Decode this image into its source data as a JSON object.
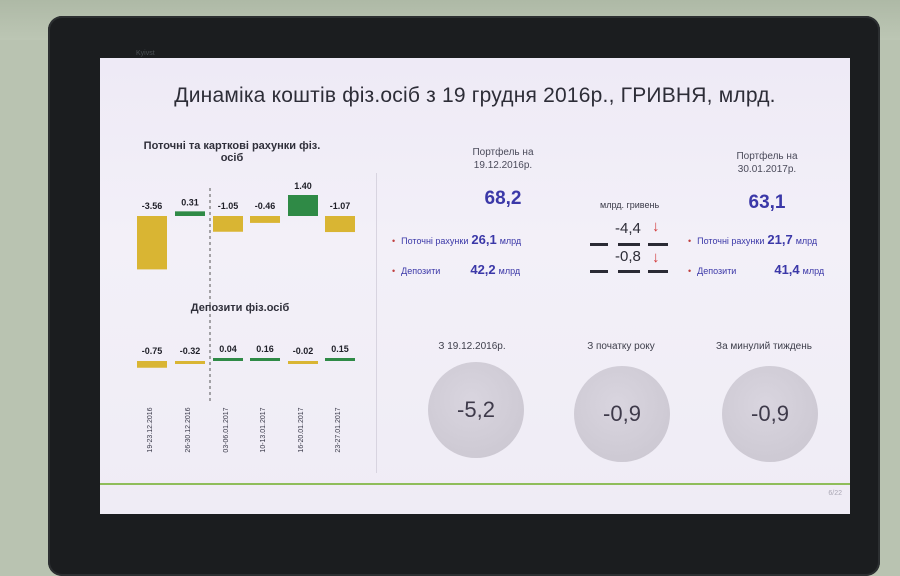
{
  "bezel": {
    "label": "Kyivst"
  },
  "slide": {
    "title": "Динаміка коштів фіз.осіб з 19 грудня 2016р., ГРИВНЯ, млрд.",
    "page": "6/22"
  },
  "left_charts": {
    "current_title": "Поточні та карткові рахунки фіз. осіб",
    "deposits_title": "Депозити фіз.осіб",
    "week_labels": [
      "19-23.12.2016",
      "26-30.12.2016",
      "03-06.01.2017",
      "10-13.01.2017",
      "16-20.01.2017",
      "23-27.01.2017"
    ]
  },
  "chart_data": [
    {
      "type": "bar",
      "title": "Поточні та карткові рахунки фіз. осіб",
      "categories": [
        "19-23.12.2016",
        "26-30.12.2016",
        "03-06.01.2017",
        "10-13.01.2017",
        "16-20.01.2017",
        "23-27.01.2017"
      ],
      "values": [
        -3.56,
        0.31,
        -1.05,
        -0.46,
        1.4,
        -1.07
      ],
      "value_labels": [
        "-3.56",
        "0.31",
        "-1.05",
        "-0.46",
        "1.40",
        "-1.07"
      ],
      "colors": {
        "negative": "#d9b533",
        "positive": "#2f8a46"
      },
      "xlabel": "",
      "ylabel": ""
    },
    {
      "type": "bar",
      "title": "Депозити фіз.осіб",
      "categories": [
        "19-23.12.2016",
        "26-30.12.2016",
        "03-06.01.2017",
        "10-13.01.2017",
        "16-20.01.2017",
        "23-27.01.2017"
      ],
      "values": [
        -0.75,
        -0.32,
        0.04,
        0.16,
        -0.02,
        0.15
      ],
      "value_labels": [
        "-0.75",
        "-0.32",
        "0.04",
        "0.16",
        "-0.02",
        "0.15"
      ],
      "colors": {
        "negative": "#d9b533",
        "positive": "#2f8a46"
      },
      "xlabel": "",
      "ylabel": ""
    }
  ],
  "portfolio_start": {
    "label": "Портфель на 19.12.2016р.",
    "total": "68,2",
    "current_label": "Поточні рахунки",
    "current_value": "26,1",
    "current_unit": "млрд",
    "deposits_label": "Депозити",
    "deposits_value": "42,2",
    "deposits_unit": "млрд"
  },
  "change": {
    "unit_label": "млрд. гривень",
    "current_delta": "-4,4",
    "deposits_delta": "-0,8",
    "arrow_glyph": "↓"
  },
  "portfolio_end": {
    "label": "Портфель на 30.01.2017р.",
    "total": "63,1",
    "current_label": "Поточні рахунки",
    "current_value": "21,7",
    "current_unit": "млрд",
    "deposits_label": "Депозити",
    "deposits_value": "41,4",
    "deposits_unit": "млрд"
  },
  "periods": [
    {
      "label": "З 19.12.2016р.",
      "value": "-5,2"
    },
    {
      "label": "З початку року",
      "value": "-0,9"
    },
    {
      "label": "За минулий тиждень",
      "value": "-0,9"
    }
  ],
  "colors": {
    "accent_blue": "#3b38a8",
    "bar_negative": "#d9b533",
    "bar_positive": "#2f8a46",
    "footer_line": "#8fbd5a"
  }
}
